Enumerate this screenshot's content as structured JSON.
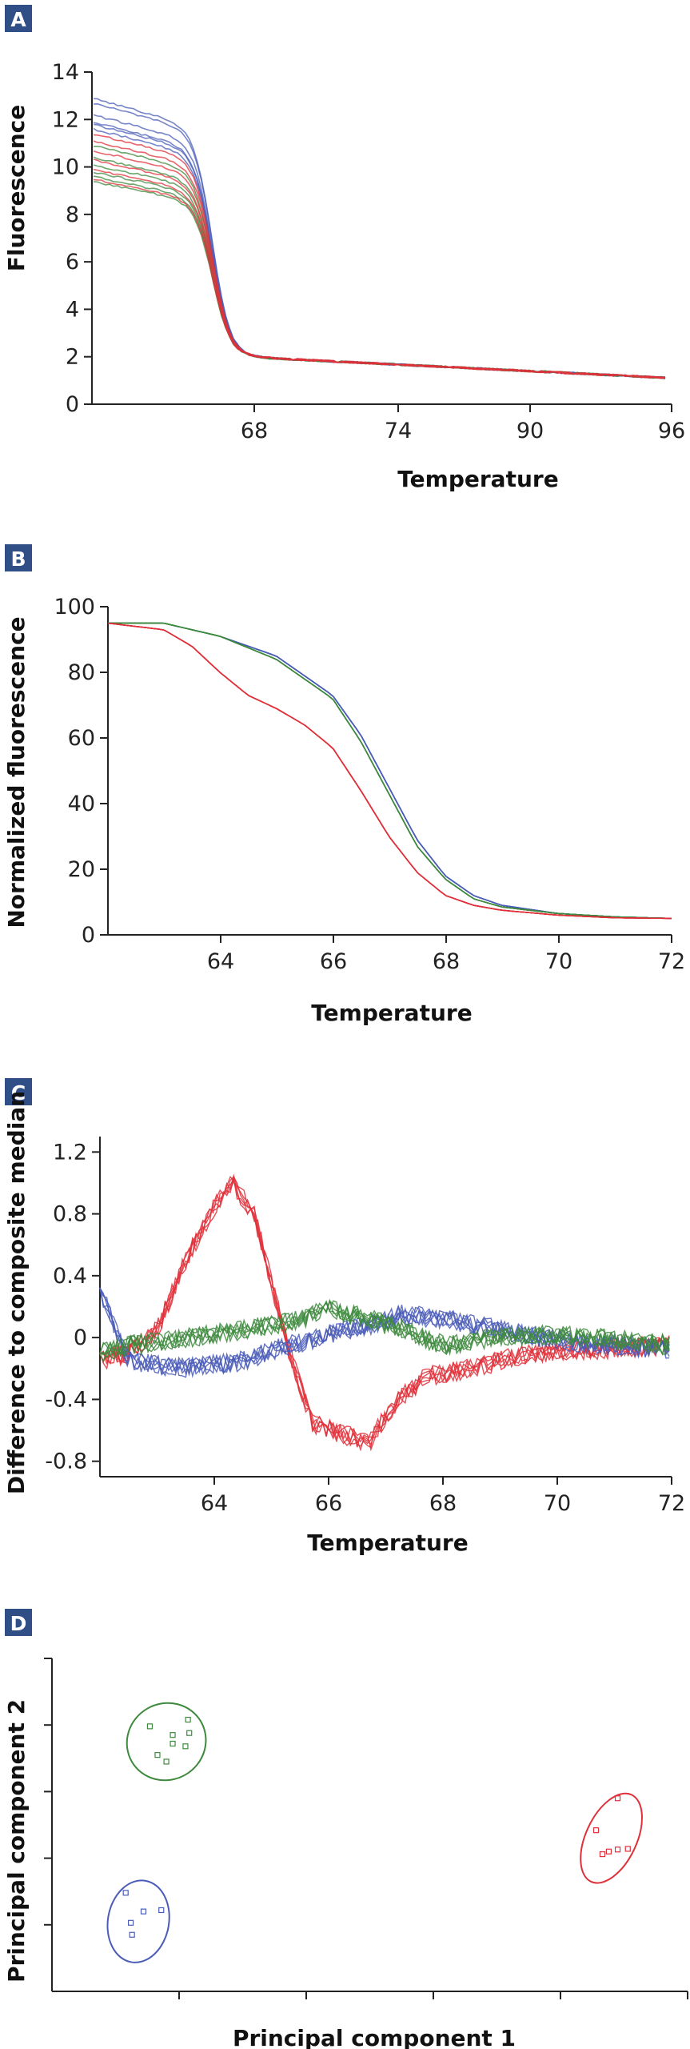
{
  "chart_data": [
    {
      "panel": "A",
      "type": "line",
      "xlabel": "Temperature",
      "ylabel": "Fluorescence",
      "ylim": [
        0,
        14
      ],
      "yticks": [
        "0",
        "2",
        "4",
        "6",
        "8",
        "10",
        "12",
        "14"
      ],
      "xticks": [
        "68",
        "74",
        "90",
        "96"
      ],
      "colors": {
        "blue": "#4a5cb8",
        "green": "#3d8a3d",
        "red": "#e0303a"
      },
      "series": [
        {
          "group": "blue",
          "start": 12.9
        },
        {
          "group": "blue",
          "start": 12.7
        },
        {
          "group": "blue",
          "start": 12.2
        },
        {
          "group": "blue",
          "start": 11.9
        },
        {
          "group": "blue",
          "start": 11.6
        },
        {
          "group": "blue",
          "start": 11.8
        },
        {
          "group": "green",
          "start": 10.9
        },
        {
          "group": "green",
          "start": 10.4
        },
        {
          "group": "green",
          "start": 10.1
        },
        {
          "group": "green",
          "start": 9.8
        },
        {
          "group": "green",
          "start": 9.6
        },
        {
          "group": "green",
          "start": 9.4
        },
        {
          "group": "red",
          "start": 11.4
        },
        {
          "group": "red",
          "start": 11.1
        },
        {
          "group": "red",
          "start": 10.7
        },
        {
          "group": "red",
          "start": 10.3
        },
        {
          "group": "red",
          "start": 9.9
        },
        {
          "group": "red",
          "start": 9.5
        }
      ]
    },
    {
      "panel": "B",
      "type": "line",
      "xlabel": "Temperature",
      "ylabel": "Normalized fluorescence",
      "xlim": [
        62,
        72
      ],
      "ylim": [
        0,
        100
      ],
      "yticks": [
        "0",
        "20",
        "40",
        "60",
        "80",
        "100"
      ],
      "xticks": [
        "64",
        "66",
        "68",
        "70",
        "72"
      ],
      "series": [
        {
          "group": "blue",
          "points": [
            [
              62,
              95
            ],
            [
              63,
              95
            ],
            [
              64,
              91
            ],
            [
              65,
              85
            ],
            [
              66,
              73
            ],
            [
              66.5,
              61
            ],
            [
              67,
              45
            ],
            [
              67.5,
              29
            ],
            [
              68,
              18
            ],
            [
              68.5,
              12
            ],
            [
              69,
              9
            ],
            [
              70,
              6.5
            ],
            [
              71,
              5.5
            ],
            [
              72,
              5
            ]
          ]
        },
        {
          "group": "green",
          "points": [
            [
              62,
              95
            ],
            [
              63,
              95
            ],
            [
              64,
              91
            ],
            [
              65,
              84
            ],
            [
              66,
              72
            ],
            [
              66.5,
              59
            ],
            [
              67,
              43
            ],
            [
              67.5,
              27
            ],
            [
              68,
              17
            ],
            [
              68.5,
              11
            ],
            [
              69,
              8.5
            ],
            [
              70,
              6.5
            ],
            [
              71,
              5.5
            ],
            [
              72,
              5
            ]
          ]
        },
        {
          "group": "red",
          "points": [
            [
              62,
              95
            ],
            [
              63,
              93
            ],
            [
              63.5,
              88
            ],
            [
              64,
              80
            ],
            [
              64.5,
              73
            ],
            [
              65,
              69
            ],
            [
              65.5,
              64
            ],
            [
              66,
              57
            ],
            [
              66.5,
              44
            ],
            [
              67,
              30
            ],
            [
              67.5,
              19
            ],
            [
              68,
              12
            ],
            [
              68.5,
              9
            ],
            [
              69,
              7.5
            ],
            [
              70,
              6
            ],
            [
              71,
              5.2
            ],
            [
              72,
              5
            ]
          ]
        }
      ]
    },
    {
      "panel": "C",
      "type": "line",
      "xlabel": "Temperature",
      "ylabel": "Difference to composite median",
      "xlim": [
        62,
        72
      ],
      "ylim": [
        -0.9,
        1.3
      ],
      "yticks": [
        "-0.8",
        "-0.4",
        "0",
        "0.4",
        "0.8",
        "1.2"
      ],
      "xticks": [
        "64",
        "66",
        "68",
        "70",
        "72"
      ],
      "series": [
        {
          "group": "red",
          "points": [
            [
              62,
              -0.15
            ],
            [
              62.5,
              -0.1
            ],
            [
              63,
              0.05
            ],
            [
              63.5,
              0.5
            ],
            [
              64,
              0.85
            ],
            [
              64.3,
              1.0
            ],
            [
              64.7,
              0.8
            ],
            [
              65.2,
              0.05
            ],
            [
              65.7,
              -0.55
            ],
            [
              66.2,
              -0.62
            ],
            [
              66.7,
              -0.68
            ],
            [
              67.2,
              -0.4
            ],
            [
              67.7,
              -0.25
            ],
            [
              68.5,
              -0.2
            ],
            [
              69.5,
              -0.1
            ],
            [
              72,
              -0.05
            ]
          ]
        },
        {
          "group": "blue",
          "points": [
            [
              62,
              0.3
            ],
            [
              62.5,
              -0.15
            ],
            [
              63.5,
              -0.2
            ],
            [
              64.5,
              -0.15
            ],
            [
              65.3,
              -0.05
            ],
            [
              66,
              0.02
            ],
            [
              66.7,
              0.08
            ],
            [
              67.3,
              0.15
            ],
            [
              68,
              0.12
            ],
            [
              69,
              0.05
            ],
            [
              70,
              -0.02
            ],
            [
              72,
              -0.08
            ]
          ]
        },
        {
          "group": "green",
          "points": [
            [
              62,
              -0.1
            ],
            [
              62.5,
              -0.05
            ],
            [
              63.5,
              0.0
            ],
            [
              64.5,
              0.05
            ],
            [
              65.3,
              0.1
            ],
            [
              66,
              0.18
            ],
            [
              66.7,
              0.12
            ],
            [
              67.3,
              0.05
            ],
            [
              68,
              -0.05
            ],
            [
              69,
              0.0
            ],
            [
              70,
              0.02
            ],
            [
              72,
              -0.05
            ]
          ]
        }
      ]
    },
    {
      "panel": "D",
      "type": "scatter",
      "xlabel": "Principal component 1",
      "ylabel": "Principal component 2",
      "xlim": [
        0,
        5
      ],
      "ylim": [
        0,
        5
      ],
      "series": [
        {
          "group": "green",
          "center": [
            0.9,
            3.75
          ],
          "radii": [
            0.3,
            0.6
          ],
          "points": [
            [
              0.77,
              3.98
            ],
            [
              0.95,
              3.85
            ],
            [
              1.07,
              4.08
            ],
            [
              0.83,
              3.55
            ],
            [
              0.9,
              3.45
            ],
            [
              1.05,
              3.68
            ],
            [
              0.95,
              3.72
            ],
            [
              1.08,
              3.88
            ]
          ]
        },
        {
          "group": "blue",
          "center": [
            0.68,
            1.05
          ],
          "radii": [
            0.24,
            0.62
          ],
          "points": [
            [
              0.58,
              1.48
            ],
            [
              0.72,
              1.2
            ],
            [
              0.86,
              1.22
            ],
            [
              0.62,
              1.03
            ],
            [
              0.63,
              0.85
            ]
          ]
        },
        {
          "group": "red",
          "center": [
            4.4,
            2.3
          ],
          "radii": [
            0.2,
            0.72
          ],
          "points": [
            [
              4.45,
              2.9
            ],
            [
              4.28,
              2.42
            ],
            [
              4.33,
              2.06
            ],
            [
              4.38,
              2.1
            ],
            [
              4.45,
              2.13
            ],
            [
              4.53,
              2.14
            ]
          ]
        }
      ]
    }
  ]
}
